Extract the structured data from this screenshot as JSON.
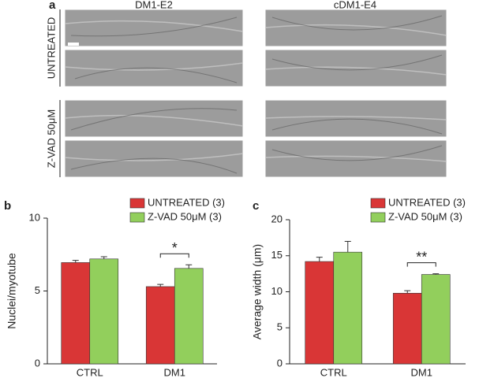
{
  "panel_a": {
    "label": "a",
    "columns": [
      "DM1-E2",
      "cDM1-E4"
    ],
    "rows": [
      "UNTREATED",
      "Z-VAD 50μM"
    ]
  },
  "chart_data": [
    {
      "type": "bar",
      "panel_label": "b",
      "y_label": "Nuclei/myotube",
      "categories": [
        "CTRL",
        "DM1"
      ],
      "series": [
        {
          "name": "UNTREATED (3)",
          "color": "#d93636",
          "values": [
            6.95,
            5.3
          ],
          "errors": [
            0.15,
            0.15
          ]
        },
        {
          "name": "Z-VAD 50μM (3)",
          "color": "#92cf5c",
          "values": [
            7.2,
            6.55
          ],
          "errors": [
            0.15,
            0.25
          ]
        }
      ],
      "ylim": [
        0,
        10
      ],
      "yticks": [
        0,
        5,
        10
      ],
      "significance": "*"
    },
    {
      "type": "bar",
      "panel_label": "c",
      "y_label": "Average width (μm)",
      "categories": [
        "CTRL",
        "DM1"
      ],
      "series": [
        {
          "name": "UNTREATED (3)",
          "color": "#d93636",
          "values": [
            14.2,
            9.8
          ],
          "errors": [
            0.6,
            0.35
          ]
        },
        {
          "name": "Z-VAD 50μM (3)",
          "color": "#92cf5c",
          "values": [
            15.5,
            12.4
          ],
          "errors": [
            1.5,
            0.1
          ]
        }
      ],
      "ylim": [
        0,
        20
      ],
      "yticks": [
        0,
        5,
        10,
        15,
        20
      ],
      "significance": "**"
    }
  ]
}
